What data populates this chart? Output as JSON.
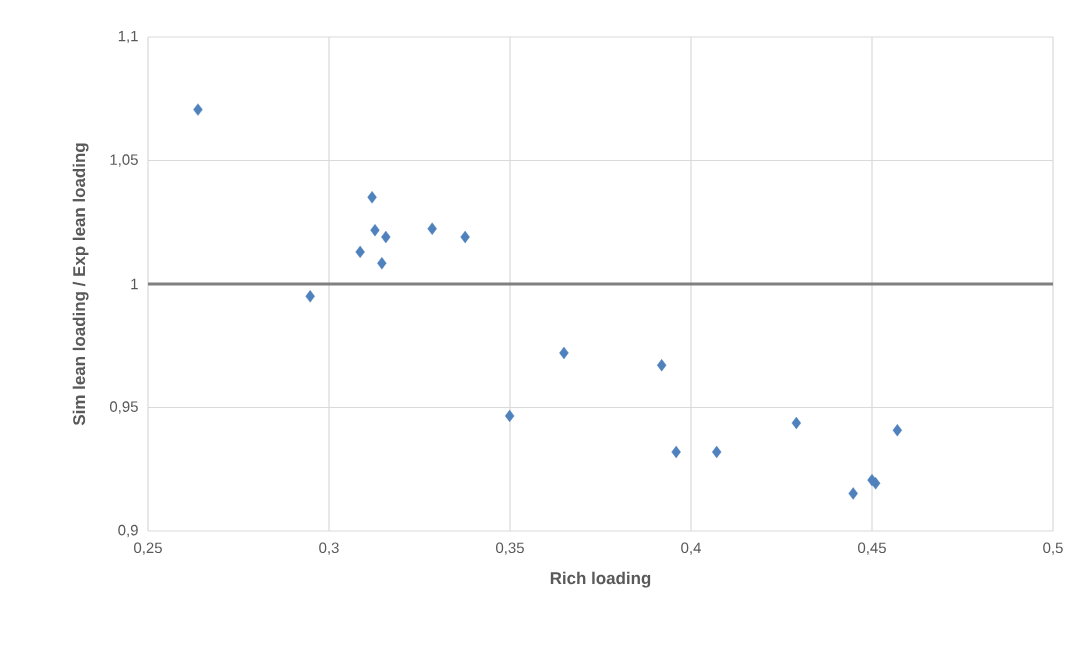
{
  "chart_data": {
    "type": "scatter",
    "xlabel": "Rich loading",
    "ylabel": "Sim lean loading / Exp lean loading",
    "x": [
      0.2638,
      0.3119,
      0.3127,
      0.3157,
      0.3285,
      0.3376,
      0.3086,
      0.3146,
      0.2948,
      0.3649,
      0.3919,
      0.3499,
      0.3959,
      0.4071,
      0.4291,
      0.457,
      0.4448,
      0.45,
      0.451
    ],
    "series": [
      {
        "color": "#4f81bd",
        "values": [
          1.0706,
          1.0351,
          1.0218,
          1.019,
          1.0224,
          1.019,
          1.013,
          1.0084,
          0.995,
          0.9721,
          0.9671,
          0.9466,
          0.932,
          0.932,
          0.9437,
          0.9408,
          0.9152,
          0.9206,
          0.9193
        ]
      }
    ],
    "xlim": [
      0.25,
      0.5
    ],
    "ylim": [
      0.9,
      1.1
    ],
    "xticks": [
      {
        "value": 0.25,
        "label": "0,25"
      },
      {
        "value": 0.3,
        "label": "0,3"
      },
      {
        "value": 0.35,
        "label": "0,35"
      },
      {
        "value": 0.4,
        "label": "0,4"
      },
      {
        "value": 0.45,
        "label": "0,45"
      },
      {
        "value": 0.5,
        "label": "0,5"
      }
    ],
    "yticks": [
      {
        "value": 0.9,
        "label": "0,9"
      },
      {
        "value": 0.95,
        "label": "0,95"
      },
      {
        "value": 1,
        "label": "1"
      },
      {
        "value": 1.05,
        "label": "1,05"
      },
      {
        "value": 1.1,
        "label": "1,1"
      }
    ],
    "ref_lines": [
      {
        "axis": "y",
        "value": 1,
        "color": "#808080"
      }
    ],
    "grid": true,
    "marker": "diamond"
  }
}
